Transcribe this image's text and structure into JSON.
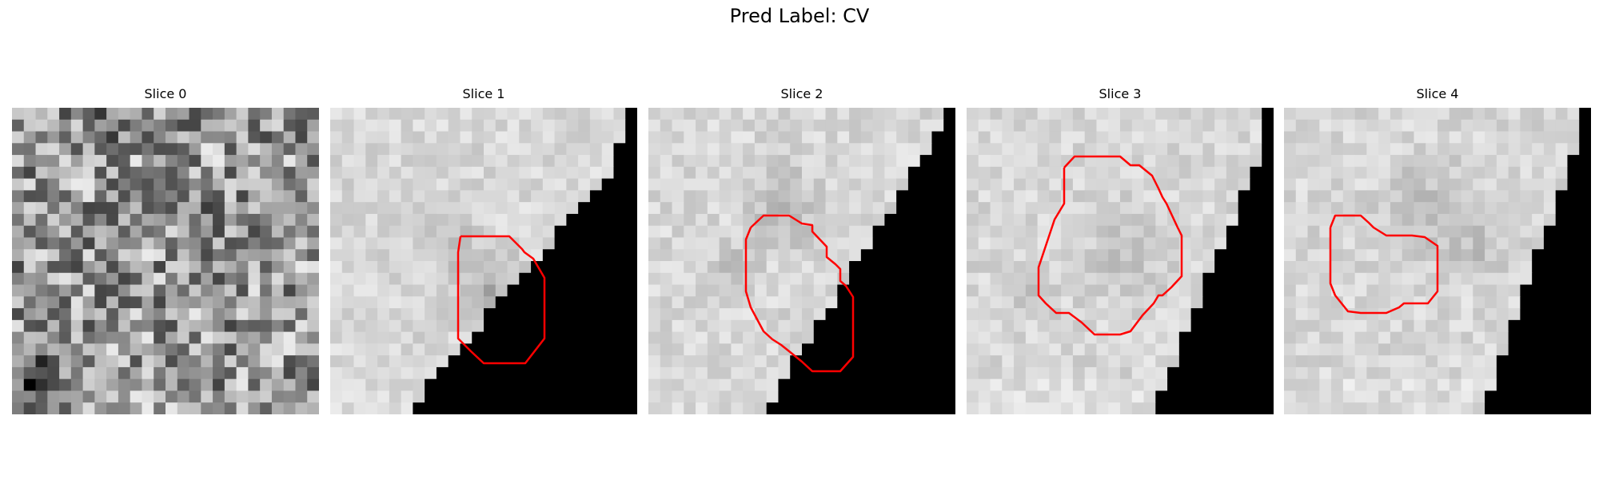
{
  "figure": {
    "title": "Pred Label: CV",
    "slices": [
      {
        "title": "Slice 0"
      },
      {
        "title": "Slice 1"
      },
      {
        "title": "Slice 2"
      },
      {
        "title": "Slice 3"
      },
      {
        "title": "Slice 4"
      }
    ]
  },
  "colors": {
    "contour": "#ff0000",
    "background": "#ffffff",
    "mask": "#000000"
  }
}
